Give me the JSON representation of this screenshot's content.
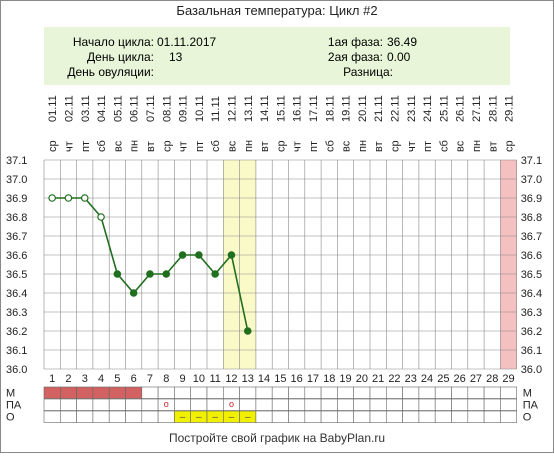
{
  "title": "Базальная температура: Цикл #2",
  "info": {
    "start_label": "Начало цикла:",
    "start_value": "01.11.2017",
    "day_label": "День цикла:",
    "day_value": "13",
    "ovulation_label": "День овуляции:",
    "ovulation_value": "",
    "phase1_label": "1ая фаза:",
    "phase1_value": "36.49",
    "phase2_label": "2ая фаза:",
    "phase2_value": "0.00",
    "diff_label": "Разница:",
    "diff_value": ""
  },
  "footer": "Постройте свой график на BabyPlan.ru",
  "colors": {
    "info_bg": "#e8f5d8",
    "line": "#1f6f1f",
    "highlight": "#fafac8",
    "end_marker": "#f5c0c0",
    "menstruation": "#d26262",
    "discharge": "#f0f000",
    "grid": "#888888"
  },
  "chart_data": {
    "type": "line",
    "title": "",
    "xlabel": "",
    "ylabel": "",
    "ylim": [
      36.0,
      37.1
    ],
    "y_ticks": [
      "37.1",
      "37.0",
      "36.9",
      "36.8",
      "36.7",
      "36.6",
      "36.5",
      "36.4",
      "36.3",
      "36.2",
      "36.1",
      "36.0"
    ],
    "grid": true,
    "days": [
      "1",
      "2",
      "3",
      "4",
      "5",
      "6",
      "7",
      "8",
      "9",
      "10",
      "11",
      "12",
      "13",
      "14",
      "15",
      "16",
      "17",
      "18",
      "19",
      "20",
      "21",
      "22",
      "23",
      "24",
      "25",
      "26",
      "27",
      "28",
      "29"
    ],
    "dates": [
      "01.11",
      "02.11",
      "03.11",
      "04.11",
      "05.11",
      "06.11",
      "07.11",
      "08.11",
      "09.11",
      "10.11",
      "11.11",
      "12.11",
      "13.11",
      "14.11",
      "15.11",
      "16.11",
      "17.11",
      "18.11",
      "19.11",
      "20.11",
      "21.11",
      "22.11",
      "23.11",
      "24.11",
      "25.11",
      "26.11",
      "27.11",
      "28.11",
      "29.11"
    ],
    "weekdays": [
      "ср",
      "чт",
      "пт",
      "сб",
      "вс",
      "пн",
      "вт",
      "ср",
      "чт",
      "пт",
      "сб",
      "вс",
      "пн",
      "вт",
      "ср",
      "чт",
      "пт",
      "сб",
      "вс",
      "пн",
      "вт",
      "ср",
      "чт",
      "пт",
      "сб",
      "вс",
      "пн",
      "вт",
      "ср"
    ],
    "series": [
      {
        "temps": [
          36.9,
          36.9,
          36.9,
          36.8,
          36.5,
          36.4,
          36.5,
          36.5,
          36.6,
          36.6,
          36.5,
          36.6,
          36.2
        ],
        "filled": [
          false,
          false,
          false,
          false,
          true,
          true,
          true,
          true,
          true,
          true,
          true,
          true,
          true
        ]
      }
    ],
    "highlight_days": [
      12,
      13
    ],
    "end_day": 29,
    "rows": {
      "labels": [
        "М",
        "ПА",
        "О"
      ],
      "menstruation_days": [
        1,
        2,
        3,
        4,
        5,
        6
      ],
      "pa_days": [
        8,
        12
      ],
      "pa_mark": "o",
      "discharge_days": [
        9,
        10,
        11,
        12,
        13
      ],
      "discharge_mark": "–"
    }
  }
}
